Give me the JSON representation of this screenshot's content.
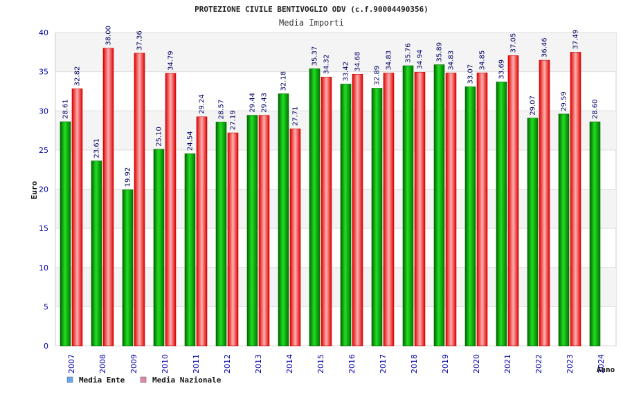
{
  "chart_data": {
    "type": "bar",
    "title": "PROTEZIONE CIVILE BENTIVOGLIO ODV (c.f.90004490356)",
    "subtitle": "Media Importi",
    "ylabel": "Euro",
    "xlabel": "Anno",
    "ylim": [
      0,
      40
    ],
    "yticks": [
      0,
      5,
      10,
      15,
      20,
      25,
      30,
      35,
      40
    ],
    "grid": true,
    "legend": "bottom-left",
    "categories": [
      "2007",
      "2008",
      "2009",
      "2010",
      "2011",
      "2012",
      "2013",
      "2014",
      "2015",
      "2016",
      "2017",
      "2018",
      "2019",
      "2020",
      "2021",
      "2022",
      "2023",
      "2024"
    ],
    "series": [
      {
        "name": "Media Ente",
        "color": "#00aa00",
        "legend_color": "#66aaee",
        "values": [
          28.61,
          23.61,
          19.92,
          25.1,
          24.54,
          28.57,
          29.44,
          32.18,
          35.37,
          33.42,
          32.89,
          35.76,
          35.89,
          33.07,
          33.69,
          29.07,
          29.59,
          28.6
        ],
        "labels": [
          "28.61",
          "23.61",
          "19.92",
          "25.10",
          "24.54",
          "28.57",
          "29.44",
          "32.18",
          "35.37",
          "33.42",
          "32.89",
          "35.76",
          "35.89",
          "33.07",
          "33.69",
          "29.07",
          "29.59",
          "28.60"
        ]
      },
      {
        "name": "Media Nazionale",
        "color": "#ee2222",
        "legend_color": "#dd88aa",
        "values": [
          32.82,
          38.0,
          37.36,
          34.79,
          29.24,
          27.19,
          29.43,
          27.71,
          34.32,
          34.68,
          34.83,
          34.94,
          34.83,
          34.85,
          37.05,
          36.46,
          37.49,
          null
        ],
        "labels": [
          "32.82",
          "38.00",
          "37.36",
          "34.79",
          "29.24",
          "27.19",
          "29.43",
          "27.71",
          "34.32",
          "34.68",
          "34.83",
          "34.94",
          "34.83",
          "34.85",
          "37.05",
          "36.46",
          "37.49",
          ""
        ]
      }
    ]
  }
}
